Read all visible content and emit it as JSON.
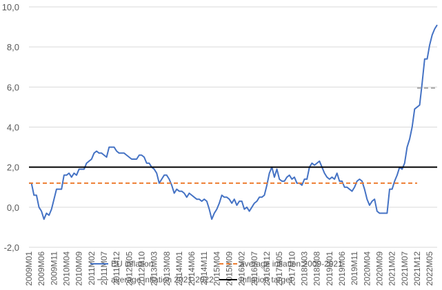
{
  "chart_data": {
    "type": "line",
    "title": "",
    "xlabel": "",
    "ylabel": "",
    "ylim": [
      -2,
      10
    ],
    "y_ticks": [
      "-2,0",
      "0,0",
      "2,0",
      "4,0",
      "6,0",
      "8,0",
      "10,0"
    ],
    "y_tick_values": [
      -2,
      0,
      2,
      4,
      6,
      8,
      10
    ],
    "x_tick_labels": [
      "2009M01",
      "2009M06",
      "2009M11",
      "2010M04",
      "2010M09",
      "2011M02",
      "2011M07",
      "2011M12",
      "2012M05",
      "2012M10",
      "2013M03",
      "2013M08",
      "2014M01",
      "2014M06",
      "2014M11",
      "2015M04",
      "2015M09",
      "2016M02",
      "2016M07",
      "2016M12",
      "2017M05",
      "2017M10",
      "2018M03",
      "2018M08",
      "2019M01",
      "2019M06",
      "2019M11",
      "2020M04",
      "2020M09",
      "2021M02",
      "2021M07",
      "2021M12",
      "2022M05"
    ],
    "grid": "horizontal",
    "legend_position": "bottom",
    "x_start": "2009M01",
    "series": [
      {
        "name": "EU inflation",
        "style": "solid",
        "color": "#4472C4",
        "values": [
          1.2,
          1.2,
          0.6,
          0.6,
          0.0,
          -0.2,
          -0.6,
          -0.3,
          -0.4,
          -0.1,
          0.4,
          0.9,
          0.9,
          0.9,
          1.6,
          1.6,
          1.7,
          1.5,
          1.7,
          1.6,
          1.9,
          1.9,
          1.9,
          2.2,
          2.3,
          2.4,
          2.7,
          2.8,
          2.7,
          2.7,
          2.6,
          2.5,
          3.0,
          3.0,
          3.0,
          2.8,
          2.7,
          2.7,
          2.7,
          2.6,
          2.5,
          2.4,
          2.4,
          2.4,
          2.6,
          2.6,
          2.5,
          2.2,
          2.2,
          2.0,
          1.9,
          1.7,
          1.2,
          1.4,
          1.6,
          1.6,
          1.4,
          1.1,
          0.7,
          0.9,
          0.8,
          0.8,
          0.7,
          0.5,
          0.7,
          0.6,
          0.5,
          0.4,
          0.4,
          0.3,
          0.4,
          0.3,
          -0.1,
          -0.6,
          -0.3,
          -0.1,
          0.2,
          0.6,
          0.5,
          0.5,
          0.4,
          0.2,
          0.4,
          0.1,
          0.3,
          0.3,
          -0.1,
          0.0,
          -0.2,
          0.0,
          0.2,
          0.3,
          0.5,
          0.5,
          0.6,
          1.1,
          1.7,
          2.0,
          1.5,
          1.9,
          1.4,
          1.3,
          1.3,
          1.5,
          1.6,
          1.4,
          1.5,
          1.2,
          1.2,
          1.1,
          1.4,
          1.4,
          2.0,
          2.2,
          2.1,
          2.2,
          2.3,
          2.0,
          1.7,
          1.5,
          1.4,
          1.5,
          1.4,
          1.7,
          1.3,
          1.3,
          1.0,
          1.0,
          0.9,
          0.8,
          1.0,
          1.3,
          1.4,
          1.3,
          0.9,
          0.4,
          0.1,
          0.3,
          0.4,
          -0.2,
          -0.3,
          -0.3,
          -0.3,
          -0.3,
          0.9,
          0.9,
          1.3,
          1.6,
          2.0,
          1.9,
          2.2,
          3.0,
          3.4,
          4.0,
          4.9,
          5.0,
          5.1,
          6.2,
          7.4,
          7.4,
          8.1,
          8.6,
          8.9,
          9.1
        ]
      },
      {
        "name": "average inflation 2009-2021",
        "style": "dashed",
        "color": "#ED7D31",
        "from": "2009M01",
        "to": "2021M12",
        "value": 1.2
      },
      {
        "name": "average inflation 2021-2022",
        "style": "dashed",
        "color": "#A5A5A5",
        "from": "2021M12",
        "to": "2022M08",
        "value": 5.95
      },
      {
        "name": "Inflation target",
        "style": "solid",
        "color": "#000000",
        "from": "2009M01",
        "to": "2022M08",
        "value": 2.0
      }
    ]
  }
}
